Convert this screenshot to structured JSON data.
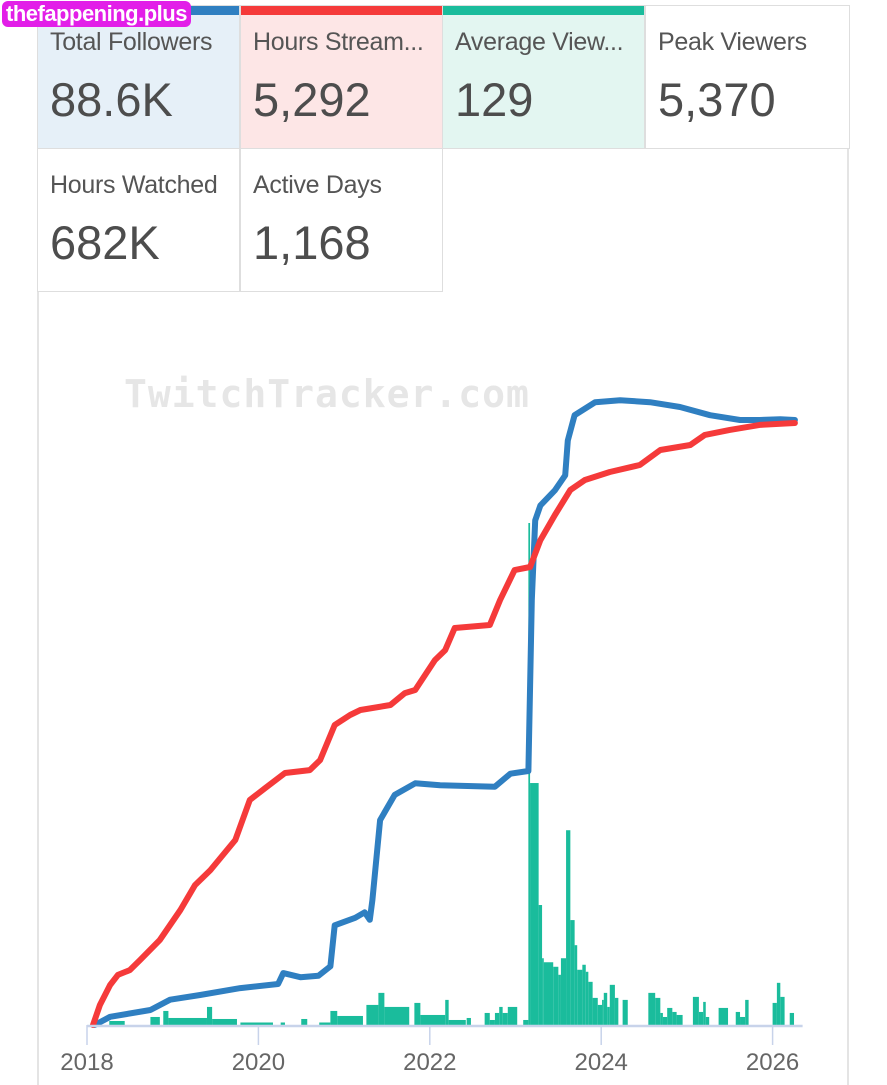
{
  "watermark": "thefappening.plus",
  "chart_watermark": "TwitchTracker.com",
  "cards": [
    {
      "label": "Total Followers",
      "value": "88.6K",
      "accent": "#2f7fc1",
      "bg": "#e6f0f8"
    },
    {
      "label": "Hours Stream...",
      "value": "5,292",
      "accent": "#f53a3a",
      "bg": "#fde6e6"
    },
    {
      "label": "Average View...",
      "value": "129",
      "accent": "#1abc9c",
      "bg": "#e3f6f1"
    },
    {
      "label": "Peak Viewers",
      "value": "5,370",
      "accent": null,
      "bg": "#ffffff"
    },
    {
      "label": "Hours Watched",
      "value": "682K",
      "accent": null,
      "bg": "#ffffff"
    },
    {
      "label": "Active Days",
      "value": "1,168",
      "accent": null,
      "bg": "#ffffff"
    }
  ],
  "chart_data": {
    "type": "line",
    "xlim": [
      2018,
      2026.35
    ],
    "x_ticks": [
      "2018",
      "2020",
      "2022",
      "2024",
      "2026"
    ],
    "grid": false,
    "colors": {
      "followers": "#2f7fc1",
      "hours": "#f53a3a",
      "bars": "#1abc9c",
      "axis": "#c8d3ea"
    },
    "series": [
      {
        "key": "followers",
        "unit": "K",
        "points": [
          [
            2018.09,
            0
          ],
          [
            2018.27,
            1.2
          ],
          [
            2018.74,
            2.2
          ],
          [
            2018.97,
            3.7
          ],
          [
            2019.32,
            4.4
          ],
          [
            2019.79,
            5.4
          ],
          [
            2020.23,
            6.0
          ],
          [
            2020.29,
            7.6
          ],
          [
            2020.49,
            7.0
          ],
          [
            2020.7,
            7.2
          ],
          [
            2020.84,
            8.6
          ],
          [
            2020.89,
            14.6
          ],
          [
            2021.13,
            15.7
          ],
          [
            2021.24,
            16.5
          ],
          [
            2021.3,
            15.4
          ],
          [
            2021.33,
            18.3
          ],
          [
            2021.42,
            30.0
          ],
          [
            2021.59,
            33.7
          ],
          [
            2021.83,
            35.4
          ],
          [
            2022.12,
            35.1
          ],
          [
            2022.76,
            34.9
          ],
          [
            2022.94,
            36.8
          ],
          [
            2023.15,
            37.2
          ],
          [
            2023.19,
            62.2
          ],
          [
            2023.23,
            73.9
          ],
          [
            2023.29,
            76.1
          ],
          [
            2023.46,
            78.3
          ],
          [
            2023.58,
            80.5
          ],
          [
            2023.61,
            85.6
          ],
          [
            2023.69,
            89.3
          ],
          [
            2023.93,
            91.2
          ],
          [
            2024.22,
            91.5
          ],
          [
            2024.57,
            91.2
          ],
          [
            2024.92,
            90.5
          ],
          [
            2025.27,
            89.3
          ],
          [
            2025.62,
            88.6
          ],
          [
            2025.85,
            88.6
          ],
          [
            2026.09,
            88.7
          ],
          [
            2026.26,
            88.6
          ]
        ]
      },
      {
        "key": "hours",
        "points": [
          [
            2018.07,
            0
          ],
          [
            2018.15,
            176
          ],
          [
            2018.27,
            352
          ],
          [
            2018.36,
            440
          ],
          [
            2018.5,
            483
          ],
          [
            2018.62,
            571
          ],
          [
            2018.85,
            747
          ],
          [
            2019.09,
            1011
          ],
          [
            2019.26,
            1230
          ],
          [
            2019.44,
            1362
          ],
          [
            2019.73,
            1626
          ],
          [
            2019.9,
            1978
          ],
          [
            2020.08,
            2083
          ],
          [
            2020.31,
            2215
          ],
          [
            2020.6,
            2241
          ],
          [
            2020.72,
            2329
          ],
          [
            2020.89,
            2637
          ],
          [
            2021.07,
            2725
          ],
          [
            2021.19,
            2769
          ],
          [
            2021.54,
            2813
          ],
          [
            2021.71,
            2918
          ],
          [
            2021.83,
            2945
          ],
          [
            2022.06,
            3208
          ],
          [
            2022.18,
            3296
          ],
          [
            2022.29,
            3490
          ],
          [
            2022.7,
            3516
          ],
          [
            2022.82,
            3736
          ],
          [
            2022.99,
            3999
          ],
          [
            2023.17,
            4026
          ],
          [
            2023.29,
            4263
          ],
          [
            2023.46,
            4483
          ],
          [
            2023.64,
            4703
          ],
          [
            2023.81,
            4791
          ],
          [
            2024.1,
            4861
          ],
          [
            2024.45,
            4923
          ],
          [
            2024.69,
            5055
          ],
          [
            2025.04,
            5099
          ],
          [
            2025.21,
            5187
          ],
          [
            2025.5,
            5231
          ],
          [
            2025.85,
            5275
          ],
          [
            2026.26,
            5292
          ]
        ]
      }
    ],
    "bars": [
      [
        2018.26,
        2018.44,
        0.8
      ],
      [
        2018.74,
        2018.85,
        1.6
      ],
      [
        2018.89,
        2018.95,
        2.8
      ],
      [
        2018.95,
        2019.4,
        1.4
      ],
      [
        2019.4,
        2019.46,
        3.6
      ],
      [
        2019.46,
        2019.75,
        1.2
      ],
      [
        2019.79,
        2020.17,
        0.5
      ],
      [
        2020.26,
        2020.31,
        0.5
      ],
      [
        2020.5,
        2020.57,
        1.2
      ],
      [
        2020.71,
        2020.84,
        0.5
      ],
      [
        2020.84,
        2020.92,
        2.8
      ],
      [
        2020.92,
        2021.22,
        1.8
      ],
      [
        2021.26,
        2021.4,
        4
      ],
      [
        2021.4,
        2021.47,
        6.4
      ],
      [
        2021.47,
        2021.76,
        3.6
      ],
      [
        2021.82,
        2021.89,
        4.4
      ],
      [
        2021.89,
        2022.18,
        2
      ],
      [
        2022.18,
        2022.22,
        5
      ],
      [
        2022.22,
        2022.42,
        1
      ],
      [
        2022.43,
        2022.48,
        1.4
      ],
      [
        2022.64,
        2022.7,
        2.4
      ],
      [
        2022.7,
        2022.76,
        1
      ],
      [
        2022.76,
        2022.81,
        2.4
      ],
      [
        2022.81,
        2022.85,
        3.6
      ],
      [
        2022.85,
        2022.91,
        2.4
      ],
      [
        2022.91,
        2023.02,
        3.6
      ],
      [
        2023.09,
        2023.15,
        1
      ],
      [
        2023.15,
        2023.17,
        100
      ],
      [
        2023.17,
        2023.27,
        48.2
      ],
      [
        2023.27,
        2023.31,
        23.9
      ],
      [
        2023.31,
        2023.33,
        13.3
      ],
      [
        2023.33,
        2023.44,
        12.5
      ],
      [
        2023.44,
        2023.5,
        11.6
      ],
      [
        2023.5,
        2023.53,
        10
      ],
      [
        2023.53,
        2023.59,
        13.3
      ],
      [
        2023.59,
        2023.64,
        38.8
      ],
      [
        2023.64,
        2023.69,
        20.9
      ],
      [
        2023.69,
        2023.72,
        15.9
      ],
      [
        2023.72,
        2023.78,
        11
      ],
      [
        2023.78,
        2023.82,
        12
      ],
      [
        2023.82,
        2023.85,
        10.6
      ],
      [
        2023.85,
        2023.9,
        8.6
      ],
      [
        2023.9,
        2023.96,
        5.4
      ],
      [
        2023.96,
        2024.01,
        4
      ],
      [
        2024.01,
        2024.03,
        5
      ],
      [
        2024.03,
        2024.07,
        6.4
      ],
      [
        2024.07,
        2024.1,
        3.6
      ],
      [
        2024.1,
        2024.16,
        8
      ],
      [
        2024.16,
        2024.2,
        5.4
      ],
      [
        2024.25,
        2024.31,
        5
      ],
      [
        2024.55,
        2024.63,
        6.4
      ],
      [
        2024.63,
        2024.69,
        5.4
      ],
      [
        2024.69,
        2024.72,
        2.4
      ],
      [
        2024.72,
        2024.77,
        1.6
      ],
      [
        2024.77,
        2024.83,
        3.4
      ],
      [
        2024.83,
        2024.88,
        2.6
      ],
      [
        2024.88,
        2024.95,
        2
      ],
      [
        2025.07,
        2025.14,
        5.6
      ],
      [
        2025.14,
        2025.19,
        2.6
      ],
      [
        2025.19,
        2025.22,
        4.6
      ],
      [
        2025.22,
        2025.26,
        1.6
      ],
      [
        2025.37,
        2025.48,
        3.4
      ],
      [
        2025.57,
        2025.62,
        2.6
      ],
      [
        2025.62,
        2025.68,
        1.6
      ],
      [
        2025.68,
        2025.72,
        5
      ],
      [
        2026.0,
        2026.05,
        4.4
      ],
      [
        2026.05,
        2026.09,
        8.4
      ],
      [
        2026.09,
        2026.14,
        5.6
      ],
      [
        2026.2,
        2026.25,
        2.4
      ]
    ]
  }
}
